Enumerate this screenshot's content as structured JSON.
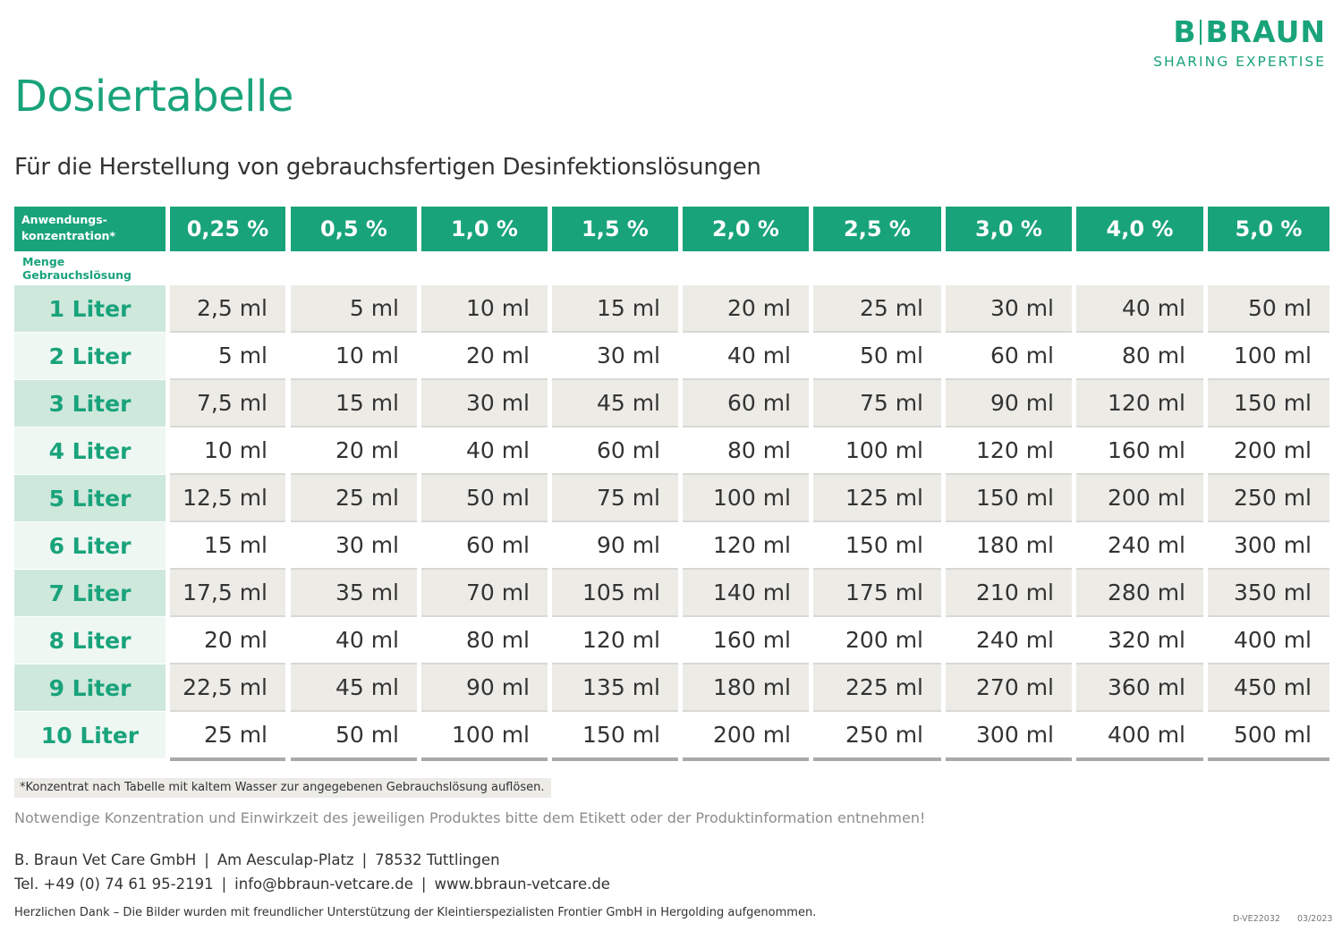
{
  "brand": {
    "name_left": "B",
    "name_right": "BRAUN",
    "tagline": "SHARING EXPERTISE",
    "color": "#19a37b"
  },
  "title": "Dosiertabelle",
  "subtitle": "Für die Herstellung von gebrauchsfertigen Desinfektionslösungen",
  "table": {
    "header_label_line1": "Anwendungs-",
    "header_label_line2": "konzentration*",
    "sub_label": "Menge Gebrauchslösung",
    "concentrations": [
      "0,25 %",
      "0,5 %",
      "1,0 %",
      "1,5 %",
      "2,0 %",
      "2,5 %",
      "3,0 %",
      "4,0 %",
      "5,0 %"
    ],
    "rows": [
      {
        "volume": "1 Liter",
        "values": [
          "2,5 ml",
          "5 ml",
          "10 ml",
          "15 ml",
          "20 ml",
          "25 ml",
          "30 ml",
          "40 ml",
          "50 ml"
        ]
      },
      {
        "volume": "2 Liter",
        "values": [
          "5 ml",
          "10 ml",
          "20 ml",
          "30 ml",
          "40 ml",
          "50 ml",
          "60 ml",
          "80 ml",
          "100 ml"
        ]
      },
      {
        "volume": "3 Liter",
        "values": [
          "7,5 ml",
          "15 ml",
          "30 ml",
          "45 ml",
          "60 ml",
          "75 ml",
          "90 ml",
          "120 ml",
          "150 ml"
        ]
      },
      {
        "volume": "4 Liter",
        "values": [
          "10 ml",
          "20 ml",
          "40 ml",
          "60 ml",
          "80 ml",
          "100 ml",
          "120 ml",
          "160 ml",
          "200 ml"
        ]
      },
      {
        "volume": "5 Liter",
        "values": [
          "12,5 ml",
          "25 ml",
          "50 ml",
          "75 ml",
          "100 ml",
          "125 ml",
          "150 ml",
          "200 ml",
          "250 ml"
        ]
      },
      {
        "volume": "6 Liter",
        "values": [
          "15 ml",
          "30 ml",
          "60 ml",
          "90 ml",
          "120 ml",
          "150 ml",
          "180 ml",
          "240 ml",
          "300 ml"
        ]
      },
      {
        "volume": "7 Liter",
        "values": [
          "17,5 ml",
          "35 ml",
          "70 ml",
          "105 ml",
          "140 ml",
          "175 ml",
          "210 ml",
          "280 ml",
          "350 ml"
        ]
      },
      {
        "volume": "8 Liter",
        "values": [
          "20 ml",
          "40 ml",
          "80 ml",
          "120 ml",
          "160 ml",
          "200 ml",
          "240 ml",
          "320 ml",
          "400 ml"
        ]
      },
      {
        "volume": "9 Liter",
        "values": [
          "22,5 ml",
          "45 ml",
          "90 ml",
          "135 ml",
          "180 ml",
          "225 ml",
          "270 ml",
          "360 ml",
          "450 ml"
        ]
      },
      {
        "volume": "10 Liter",
        "values": [
          "25 ml",
          "50 ml",
          "100 ml",
          "150 ml",
          "200 ml",
          "250 ml",
          "300 ml",
          "400 ml",
          "500 ml"
        ]
      }
    ]
  },
  "footnote": "*Konzentrat nach Tabelle mit kaltem Wasser zur angegebenen Gebrauchslösung auflösen.",
  "notice": "Notwendige Konzentration und Einwirkzeit des jeweiligen Produktes bitte dem Etikett oder der Produktinformation entnehmen!",
  "company": {
    "name": "B. Braun Vet Care GmbH",
    "street": "Am Aesculap-Platz",
    "city": "78532 Tuttlingen"
  },
  "contact": {
    "phone": "Tel. +49 (0) 74 61 95-2191",
    "email": "info@bbraun-vetcare.de",
    "web": "www.bbraun-vetcare.de"
  },
  "separator": "|",
  "thanks": "Herzlichen Dank – Die Bilder wurden mit freundlicher Unterstützung der Kleintierspezialisten Frontier GmbH in Hergolding aufgenommen.",
  "doc_code": "D-VE22032",
  "doc_date": "03/2023"
}
